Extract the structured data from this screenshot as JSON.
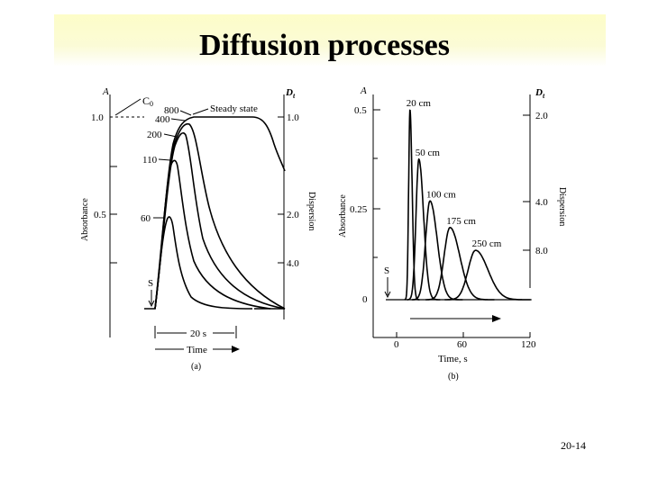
{
  "slide": {
    "title": "Diffusion processes",
    "number": "20-14",
    "colors": {
      "title_band": "#fcfcc8",
      "ink": "#000000"
    }
  },
  "chart_data": [
    {
      "type": "line",
      "panel": "(a)",
      "xlabel": "Time",
      "ylabel": "Absorbance",
      "ylabel_right": "Dispersion",
      "axis_letter_left": "A",
      "axis_letter_right": "D",
      "axis_letter_right_sub": "t",
      "y_ticks": [
        "1.0",
        "0.5"
      ],
      "y_ticks_right": [
        "1.0",
        "2.0",
        "4.0"
      ],
      "concentration_label": "C",
      "concentration_sub": "0",
      "scale_bar": "20 s",
      "inject_marker": "S",
      "curve_labels": [
        "60",
        "110",
        "200",
        "400",
        "800"
      ],
      "annotation": "Steady state",
      "series": [
        {
          "label": "60",
          "peak_absorbance": 0.5
        },
        {
          "label": "110",
          "peak_absorbance": 0.8
        },
        {
          "label": "200",
          "peak_absorbance": 0.93
        },
        {
          "label": "400",
          "peak_absorbance": 0.98
        },
        {
          "label": "800",
          "peak_absorbance": 1.0
        }
      ]
    },
    {
      "type": "line",
      "panel": "(b)",
      "xlabel": "Time, s",
      "ylabel": "Absorbance",
      "ylabel_right": "Dispersion",
      "axis_letter_left": "A",
      "axis_letter_right": "D",
      "axis_letter_right_sub": "t",
      "x_ticks": [
        "0",
        "60",
        "120"
      ],
      "xlim": [
        0,
        120
      ],
      "y_ticks": [
        "0.5",
        "0.25",
        "0"
      ],
      "ylim": [
        0,
        0.5
      ],
      "y_ticks_right": [
        "2.0",
        "4.0",
        "8.0"
      ],
      "inject_marker": "S",
      "series": [
        {
          "name": "20 cm",
          "peak_time": 12,
          "peak_absorbance": 0.5
        },
        {
          "name": "50 cm",
          "peak_time": 20,
          "peak_absorbance": 0.37
        },
        {
          "name": "100 cm",
          "peak_time": 30,
          "peak_absorbance": 0.26
        },
        {
          "name": "175 cm",
          "peak_time": 48,
          "peak_absorbance": 0.19
        },
        {
          "name": "250 cm",
          "peak_time": 71,
          "peak_absorbance": 0.13
        }
      ]
    }
  ]
}
